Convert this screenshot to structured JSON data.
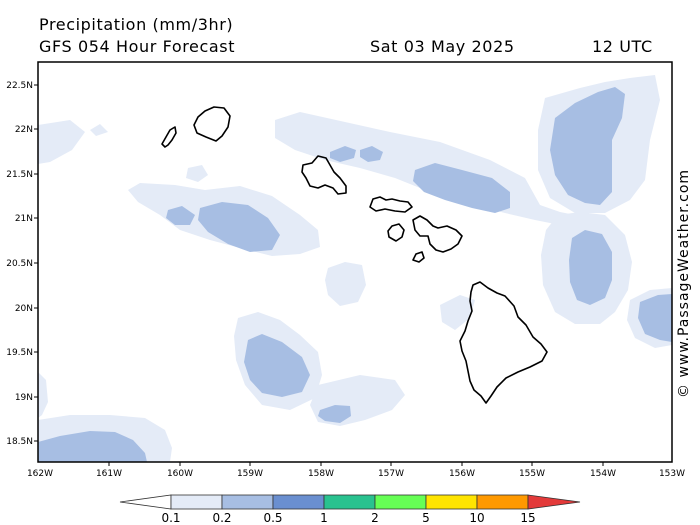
{
  "header": {
    "title": "Precipitation (mm/3hr)",
    "subtitle": "GFS 054 Hour Forecast",
    "date": "Sat 03 May 2025",
    "time": "12 UTC"
  },
  "watermark": "© www.PassageWeather.com",
  "axes": {
    "lat_labels": [
      "22.5N",
      "22N",
      "21.5N",
      "21N",
      "20.5N",
      "20N",
      "19.5N",
      "19N",
      "18.5N"
    ],
    "lon_labels": [
      "162W",
      "161W",
      "160W",
      "159W",
      "158W",
      "157W",
      "156W",
      "155W",
      "154W",
      "153W"
    ]
  },
  "legend": {
    "labels": [
      "0.1",
      "0.2",
      "0.5",
      "1",
      "2",
      "5",
      "10",
      "15"
    ],
    "colors": [
      "#ffffff",
      "#e4ebf7",
      "#a7bee3",
      "#6a8fd0",
      "#29c28f",
      "#66ff55",
      "#ffe400",
      "#ff9900",
      "#e33a3a"
    ]
  },
  "colors": {
    "light_precip": "#e4ebf7",
    "medium_precip": "#a7bee3",
    "coastline": "#000000"
  }
}
